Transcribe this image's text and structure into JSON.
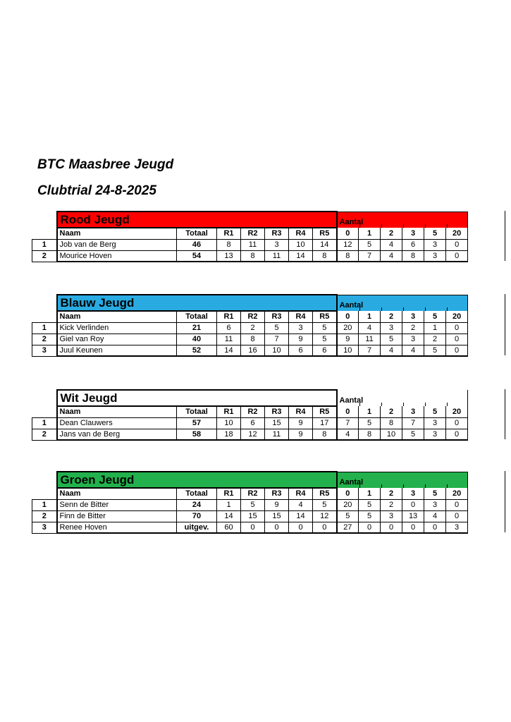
{
  "document": {
    "title": "BTC Maasbree Jeugd",
    "subtitle": "Clubtrial 24-8-2025"
  },
  "columns": {
    "name_header": "Naam",
    "total_header": "Totaal",
    "round_headers": [
      "R1",
      "R2",
      "R3",
      "R4",
      "R5"
    ],
    "aantal_label": "Aantal",
    "aantal_headers": [
      "0",
      "1",
      "2",
      "3",
      "5",
      "20"
    ]
  },
  "groups": [
    {
      "title": "Rood Jeugd",
      "color": "#ff0000",
      "rows": [
        {
          "pos": "1",
          "name": "Job van de Berg",
          "total": "46",
          "rounds": [
            "8",
            "11",
            "3",
            "10",
            "14"
          ],
          "aantal": [
            "12",
            "5",
            "4",
            "6",
            "3",
            "0"
          ]
        },
        {
          "pos": "2",
          "name": "Mourice Hoven",
          "total": "54",
          "rounds": [
            "13",
            "8",
            "11",
            "14",
            "8"
          ],
          "aantal": [
            "8",
            "7",
            "4",
            "8",
            "3",
            "0"
          ]
        }
      ]
    },
    {
      "title": "Blauw Jeugd",
      "color": "#29abe2",
      "rows": [
        {
          "pos": "1",
          "name": "Kick Verlinden",
          "total": "21",
          "rounds": [
            "6",
            "2",
            "5",
            "3",
            "5"
          ],
          "aantal": [
            "20",
            "4",
            "3",
            "2",
            "1",
            "0"
          ]
        },
        {
          "pos": "2",
          "name": "Giel van Roy",
          "total": "40",
          "rounds": [
            "11",
            "8",
            "7",
            "9",
            "5"
          ],
          "aantal": [
            "9",
            "11",
            "5",
            "3",
            "2",
            "0"
          ]
        },
        {
          "pos": "3",
          "name": "Juul Keunen",
          "total": "52",
          "rounds": [
            "14",
            "16",
            "10",
            "6",
            "6"
          ],
          "aantal": [
            "10",
            "7",
            "4",
            "4",
            "5",
            "0"
          ]
        }
      ]
    },
    {
      "title": "Wit Jeugd",
      "color": "#ffffff",
      "rows": [
        {
          "pos": "1",
          "name": "Dean Clauwers",
          "total": "57",
          "rounds": [
            "10",
            "6",
            "15",
            "9",
            "17"
          ],
          "aantal": [
            "7",
            "5",
            "8",
            "7",
            "3",
            "0"
          ]
        },
        {
          "pos": "2",
          "name": "Jans van de Berg",
          "total": "58",
          "rounds": [
            "18",
            "12",
            "11",
            "9",
            "8"
          ],
          "aantal": [
            "4",
            "8",
            "10",
            "5",
            "3",
            "0"
          ]
        }
      ]
    },
    {
      "title": "Groen Jeugd",
      "color": "#22b14c",
      "rows": [
        {
          "pos": "1",
          "name": "Senn de Bitter",
          "total": "24",
          "rounds": [
            "1",
            "5",
            "9",
            "4",
            "5"
          ],
          "aantal": [
            "20",
            "5",
            "2",
            "0",
            "3",
            "0"
          ]
        },
        {
          "pos": "2",
          "name": "Finn de Bitter",
          "total": "70",
          "rounds": [
            "14",
            "15",
            "15",
            "14",
            "12"
          ],
          "aantal": [
            "5",
            "5",
            "3",
            "13",
            "4",
            "0"
          ]
        },
        {
          "pos": "3",
          "name": "Renee Hoven",
          "total": "uitgev.",
          "rounds": [
            "60",
            "0",
            "0",
            "0",
            "0"
          ],
          "aantal": [
            "27",
            "0",
            "0",
            "0",
            "0",
            "3"
          ]
        }
      ]
    }
  ]
}
